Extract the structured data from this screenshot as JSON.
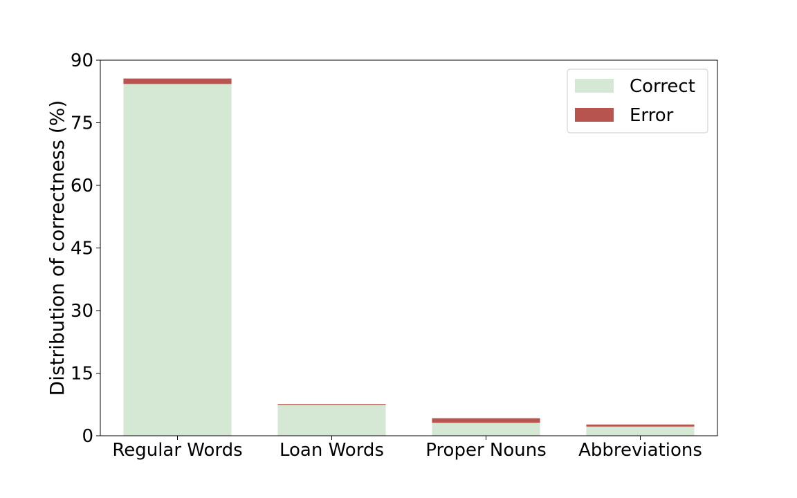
{
  "chart_data": {
    "type": "bar",
    "stacked": true,
    "categories": [
      "Regular Words",
      "Loan Words",
      "Proper Nouns",
      "Abbreviations"
    ],
    "series": [
      {
        "name": "Correct",
        "color": "#d5e8d4",
        "values": [
          84.3,
          7.4,
          3.1,
          2.2
        ]
      },
      {
        "name": "Error",
        "color": "#b85450",
        "values": [
          1.3,
          0.2,
          1.1,
          0.5
        ]
      }
    ],
    "title": "",
    "xlabel": "",
    "ylabel": "Distribution of correctness (%)",
    "ylim": [
      0,
      90
    ],
    "yticks": [
      0,
      15,
      30,
      45,
      60,
      75,
      90
    ],
    "grid": false,
    "legend_position": "top-right"
  }
}
